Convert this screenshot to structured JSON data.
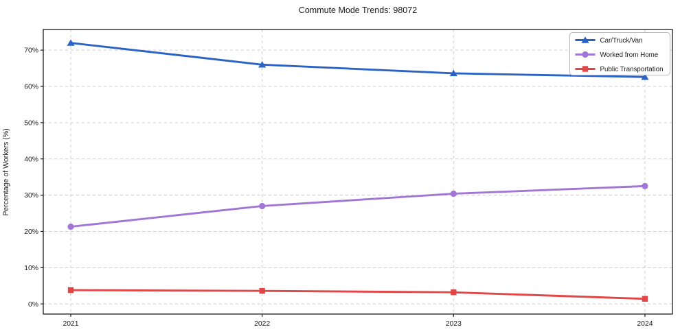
{
  "chart_data": {
    "type": "line",
    "title": "Commute Mode Trends: 98072",
    "xlabel": "",
    "ylabel": "Percentage of Workers (%)",
    "categories": [
      "2021",
      "2022",
      "2023",
      "2024"
    ],
    "series": [
      {
        "name": "Car/Truck/Van",
        "color": "#2a62c6",
        "marker": "triangle",
        "values": [
          72.0,
          66.0,
          63.6,
          62.6
        ]
      },
      {
        "name": "Worked from Home",
        "color": "#a176d5",
        "marker": "circle",
        "values": [
          21.3,
          27.0,
          30.4,
          32.5
        ]
      },
      {
        "name": "Public Transportation",
        "color": "#e14747",
        "marker": "square",
        "values": [
          3.8,
          3.6,
          3.2,
          1.4
        ]
      }
    ],
    "yticks": [
      0,
      10,
      20,
      30,
      40,
      50,
      60,
      70
    ],
    "ytick_suffix": "%",
    "ylim": [
      -2.8,
      75.7
    ],
    "grid": true,
    "grid_style": "dashed",
    "grid_color": "#cccccc",
    "frame_color": "#1a1a1a",
    "legend_position": "upper right",
    "background_color": "#ffffff"
  }
}
